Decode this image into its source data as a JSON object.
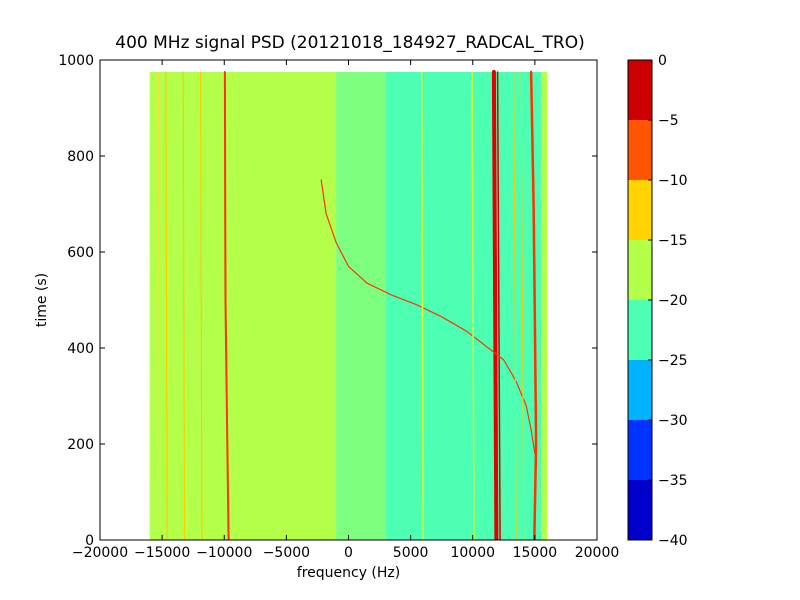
{
  "chart_data": {
    "type": "heatmap",
    "title": "400 MHz signal PSD (20121018_184927_RADCAL_TRO)",
    "xlabel": "frequency (Hz)",
    "ylabel": "time (s)",
    "xlim": [
      -20000,
      20000
    ],
    "ylim": [
      0,
      1000
    ],
    "x_ticks": [
      -20000,
      -15000,
      -10000,
      -5000,
      0,
      5000,
      10000,
      15000,
      20000
    ],
    "x_tick_labels": [
      "−20000",
      "−15000",
      "−10000",
      "−5000",
      "0",
      "5000",
      "10000",
      "15000",
      "20000"
    ],
    "y_ticks": [
      0,
      200,
      400,
      600,
      800,
      1000
    ],
    "y_tick_labels": [
      "0",
      "200",
      "400",
      "600",
      "800",
      "1000"
    ],
    "data_extent": {
      "x": [
        -16000,
        16000
      ],
      "y": [
        0,
        975
      ]
    },
    "background_levels": [
      {
        "x_range": [
          -16000,
          -1000
        ],
        "level": -17.5,
        "color": "#b3ff4a"
      },
      {
        "x_range": [
          -1000,
          3000
        ],
        "level": -20,
        "color": "#7fff7f"
      },
      {
        "x_range": [
          3000,
          15500
        ],
        "level": -22.5,
        "color": "#4dffb3"
      },
      {
        "x_range": [
          15500,
          16000
        ],
        "level": -17.5,
        "color": "#b3ff4a"
      }
    ],
    "signals": [
      {
        "name": "",
        "color": "#ff3300",
        "width": 2,
        "points": [
          [
            -9650,
            0
          ],
          [
            -9800,
            300
          ],
          [
            -9900,
            500
          ],
          [
            -9920,
            700
          ],
          [
            -9950,
            975
          ]
        ]
      },
      {
        "name": "",
        "color": "#ff3300",
        "width": 2.5,
        "points": [
          [
            14950,
            0
          ],
          [
            15100,
            200
          ],
          [
            15000,
            450
          ],
          [
            14900,
            700
          ],
          [
            14700,
            975
          ]
        ]
      },
      {
        "name": "",
        "color": "#e00000",
        "width": 4,
        "points": [
          [
            11900,
            0
          ],
          [
            11700,
            975
          ]
        ]
      },
      {
        "name": "",
        "color": "#cc0000",
        "width": 1.5,
        "points": [
          [
            12200,
            0
          ],
          [
            12000,
            975
          ]
        ]
      },
      {
        "name": "",
        "color": "#ff3300",
        "width": 1.2,
        "points": [
          [
            -2200,
            750
          ],
          [
            -1800,
            680
          ],
          [
            -1000,
            620
          ],
          [
            0,
            570
          ],
          [
            1500,
            535
          ],
          [
            3500,
            510
          ],
          [
            5500,
            490
          ],
          [
            7500,
            465
          ],
          [
            9500,
            435
          ],
          [
            11500,
            395
          ],
          [
            12500,
            375
          ],
          [
            13500,
            330
          ],
          [
            14300,
            280
          ],
          [
            14700,
            230
          ],
          [
            15000,
            180
          ]
        ]
      },
      {
        "name": "",
        "color": "#ffcc00",
        "width": 1.2,
        "points": [
          [
            -14600,
            0
          ],
          [
            -14700,
            975
          ]
        ]
      },
      {
        "name": "",
        "color": "#ffcc00",
        "width": 1.2,
        "points": [
          [
            -13200,
            0
          ],
          [
            -13300,
            975
          ]
        ]
      },
      {
        "name": "",
        "color": "#ffcc00",
        "width": 1.2,
        "points": [
          [
            -11800,
            0
          ],
          [
            -11900,
            975
          ]
        ]
      },
      {
        "name": "",
        "color": "#ffdd33",
        "width": 1,
        "points": [
          [
            -15200,
            0
          ],
          [
            -15300,
            975
          ]
        ]
      },
      {
        "name": "",
        "color": "#d8ff30",
        "width": 1.5,
        "points": [
          [
            6000,
            0
          ],
          [
            5900,
            975
          ]
        ]
      },
      {
        "name": "",
        "color": "#d8ff30",
        "width": 1.5,
        "points": [
          [
            10100,
            0
          ],
          [
            9950,
            975
          ]
        ]
      },
      {
        "name": "",
        "color": "#ffcc00",
        "width": 1,
        "points": [
          [
            13500,
            0
          ],
          [
            13300,
            975
          ]
        ]
      },
      {
        "name": "",
        "color": "#ffcc00",
        "width": 1,
        "points": [
          [
            14100,
            0
          ],
          [
            13900,
            975
          ]
        ]
      }
    ],
    "colorbar": {
      "min": -40,
      "max": 0,
      "levels": [
        -40,
        -35,
        -30,
        -25,
        -20,
        -15,
        -10,
        -5,
        0
      ],
      "tick_labels": [
        "−40",
        "−35",
        "−30",
        "−25",
        "−20",
        "−15",
        "−10",
        "−5",
        "0"
      ],
      "colors": [
        "#0000cc",
        "#0033ff",
        "#00b3ff",
        "#4dffb3",
        "#b3ff4a",
        "#ffd200",
        "#ff5500",
        "#cc0000"
      ]
    }
  }
}
